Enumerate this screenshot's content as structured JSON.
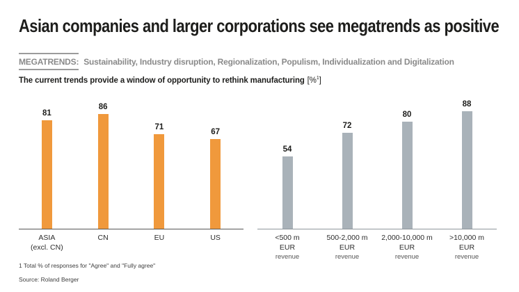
{
  "title": "Asian companies and larger corporations see megatrends as positive",
  "megatrends": {
    "label": "MEGATRENDS:",
    "text": "Sustainability, Industry disruption, Regionalization, Populism, Individualization and Digitalization"
  },
  "subtitle": {
    "text": "The current trends provide a window of opportunity to rethink manufacturing",
    "unit_open": "[%",
    "unit_sup": "1",
    "unit_close": "]"
  },
  "colors": {
    "orange_bar": "#F0993C",
    "gray_bar": "#A9B2B9",
    "title_text": "#1D1D1B",
    "megatrends_gray": "#8A8A8A"
  },
  "chart_data": [
    {
      "type": "bar",
      "unit": "%",
      "categories": [
        [
          "ASIA",
          "(excl. CN)"
        ],
        [
          "CN"
        ],
        [
          "EU"
        ],
        [
          "US"
        ]
      ],
      "values": [
        81,
        86,
        71,
        67
      ],
      "bar_color": "#F0993C",
      "axis_color": "#555555",
      "ylim": [
        0,
        100
      ],
      "legend": "none",
      "grid": "off"
    },
    {
      "type": "bar",
      "unit": "%",
      "categories": [
        [
          "<500 m",
          "EUR",
          "revenue"
        ],
        [
          "500-2,000 m",
          "EUR",
          "revenue"
        ],
        [
          "2,000-10,000 m",
          "EUR",
          "revenue"
        ],
        [
          ">10,000 m",
          "EUR",
          "revenue"
        ]
      ],
      "values": [
        54,
        72,
        80,
        88
      ],
      "bar_color": "#A9B2B9",
      "axis_color": "#8E969B",
      "ylim": [
        0,
        100
      ],
      "legend": "none",
      "grid": "off"
    }
  ],
  "footnote": "1 Total % of responses for \"Agree\" and \"Fully agree\"",
  "source": "Source: Roland Berger"
}
